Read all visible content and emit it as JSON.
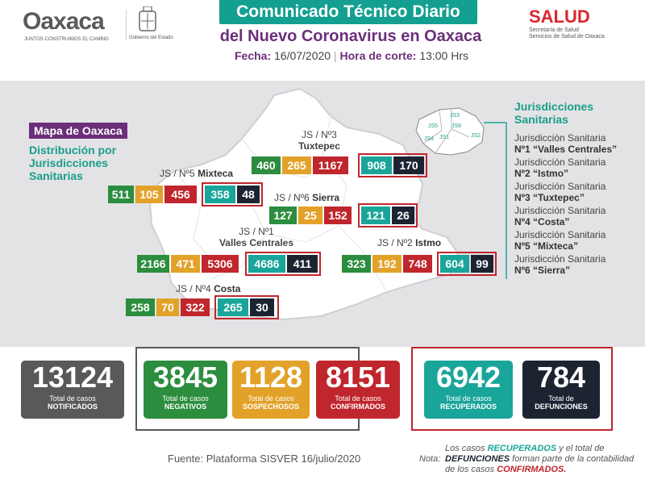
{
  "header": {
    "brand": "Oaxaca",
    "brand_tag": "JUNTOS CONSTRUIMOS EL CAMBIO",
    "seal_text": "Gobierno del Estado",
    "title_line1": "Comunicado Técnico Diario",
    "title_line2": "del Nuevo Coronavirus en Oaxaca",
    "date_label": "Fecha:",
    "date_value": "16/07/2020",
    "cut_label": "Hora de corte:",
    "cut_value": "13:00 Hrs",
    "right_logo": "SALUD",
    "right_sub1": "Secretaría de Salud",
    "right_sub2": "Servicios de Salud de Oaxaca"
  },
  "map": {
    "title": "Mapa de Oaxaca",
    "subtitle1": "Distribución por",
    "subtitle2": "Jurisdicciones",
    "subtitle3": "Sanitarias",
    "mini_labels": [
      "JS5",
      "JS3",
      "JS6",
      "JS4",
      "JS1",
      "JS2"
    ],
    "regions": {
      "tuxtepec": {
        "label_js": "JS / Nº3",
        "label_name": "Tuxtepec",
        "negativos": "460",
        "sospechosos": "265",
        "confirmados": "1167",
        "recuperados": "908",
        "defunciones": "170"
      },
      "mixteca": {
        "label_js": "JS / Nº5",
        "label_name": "Mixteca",
        "negativos": "511",
        "sospechosos": "105",
        "confirmados": "456",
        "recuperados": "358",
        "defunciones": "48"
      },
      "sierra": {
        "label_js": "JS / Nº6",
        "label_name": "Sierra",
        "negativos": "127",
        "sospechosos": "25",
        "confirmados": "152",
        "recuperados": "121",
        "defunciones": "26"
      },
      "valles": {
        "label_js": "JS / Nº1",
        "label_name": "Valles Centrales",
        "negativos": "2166",
        "sospechosos": "471",
        "confirmados": "5306",
        "recuperados": "4686",
        "defunciones": "411"
      },
      "istmo": {
        "label_js": "JS / Nº2",
        "label_name": "Istmo",
        "negativos": "323",
        "sospechosos": "192",
        "confirmados": "748",
        "recuperados": "604",
        "defunciones": "99"
      },
      "costa": {
        "label_js": "JS / Nº4",
        "label_name": "Costa",
        "negativos": "258",
        "sospechosos": "70",
        "confirmados": "322",
        "recuperados": "265",
        "defunciones": "30"
      }
    }
  },
  "legend": {
    "title1": "Jurisdicciones",
    "title2": "Sanitarias",
    "items": [
      {
        "line1": "Jurisdicción Sanitaria",
        "line2": "Nº1 “Valles Centrales”"
      },
      {
        "line1": "Jurisdicción Sanitaria",
        "line2": "Nº2 “Istmo”"
      },
      {
        "line1": "Jurisdicción Sanitaria",
        "line2": "Nº3 “Tuxtepec”"
      },
      {
        "line1": "Jurisdicción Sanitaria",
        "line2": "Nº4 “Costa”"
      },
      {
        "line1": "Jurisdicción Sanitaria",
        "line2": "Nº5 “Mixteca”"
      },
      {
        "line1": "Jurisdicción Sanitaria",
        "line2": "Nº6 “Sierra”"
      }
    ]
  },
  "totals": {
    "notificados": {
      "value": "13124",
      "label1": "Total de casos",
      "label2": "NOTIFICADOS",
      "color": "#58595b"
    },
    "negativos": {
      "value": "3845",
      "label1": "Total de casos",
      "label2": "NEGATIVOS",
      "color": "#2c8d3e"
    },
    "sospechosos": {
      "value": "1128",
      "label1": "Total de casos",
      "label2": "SOSPECHOSOS",
      "color": "#e2a22a"
    },
    "confirmados": {
      "value": "8151",
      "label1": "Total de casos",
      "label2": "CONFIRMADOS",
      "color": "#c0262d"
    },
    "recuperados": {
      "value": "6942",
      "label1": "Total de casos",
      "label2": "RECUPERADOS",
      "color": "#1aa59a"
    },
    "defunciones": {
      "value": "784",
      "label1": "Total de",
      "label2": "DEFUNCIONES",
      "color": "#1c2432"
    }
  },
  "footer": {
    "source": "Fuente: Plataforma SISVER 16/julio/2020",
    "note_prefix": "Nota:",
    "note_1": "Los casos",
    "note_recuperados": "RECUPERADOS",
    "note_2": "y el total de",
    "note_defunciones": "DEFUNCIONES",
    "note_3": "forman parte de la contabilidad de los casos",
    "note_confirmados": "CONFIRMADOS."
  }
}
